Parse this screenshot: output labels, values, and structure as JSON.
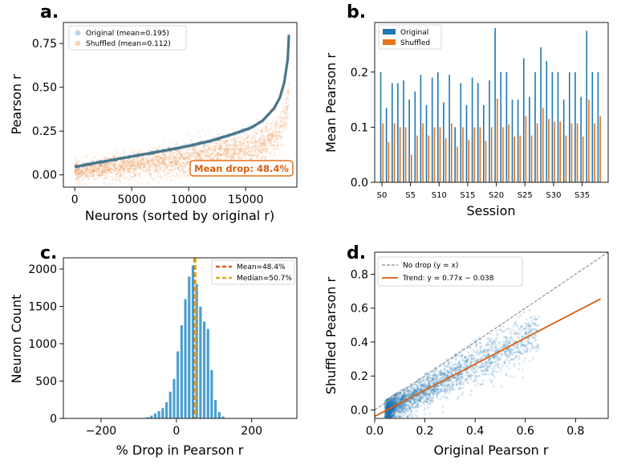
{
  "colors": {
    "original": "#1f77b4",
    "shuffled": "#e6731a",
    "scatter_line": "#4a7689",
    "median": "#e6a817",
    "identity": "#888888",
    "trend": "#d95f0e"
  },
  "chart_data": [
    {
      "panel": "a.",
      "type": "scatter",
      "xlabel": "Neurons (sorted by original r)",
      "ylabel": "Pearson r",
      "xlim": [
        -1000,
        19500
      ],
      "ylim": [
        -0.07,
        0.87
      ],
      "xticks": [
        0,
        5000,
        10000,
        15000
      ],
      "yticks": [
        0.0,
        0.25,
        0.5,
        0.75
      ],
      "ytick_labels": [
        "0.00",
        "0.25",
        "0.50",
        "0.75"
      ],
      "n_neurons": 18800,
      "series": [
        {
          "name": "Original (mean=0.195)",
          "curve_x": [
            0,
            2000,
            5000,
            8000,
            10000,
            12000,
            14000,
            15500,
            16500,
            17500,
            18000,
            18400,
            18700,
            18800
          ],
          "curve_y": [
            0.045,
            0.07,
            0.105,
            0.14,
            0.165,
            0.195,
            0.235,
            0.27,
            0.31,
            0.38,
            0.44,
            0.53,
            0.66,
            0.8
          ]
        },
        {
          "name": "Shuffled (mean=0.112)",
          "spread_center_y": [
            0.02,
            0.035,
            0.055,
            0.075,
            0.09,
            0.11,
            0.13,
            0.15,
            0.175,
            0.22,
            0.26,
            0.32,
            0.4,
            0.5
          ]
        }
      ],
      "annotation": "Mean drop: 48.4%",
      "legend_position": "top-left"
    },
    {
      "panel": "b.",
      "type": "bar",
      "xlabel": "Session",
      "ylabel": "Mean Pearson r",
      "ylim": [
        0,
        0.29
      ],
      "yticks": [
        0.0,
        0.1,
        0.2
      ],
      "ytick_labels": [
        "0.0",
        "0.1",
        "0.2"
      ],
      "categories": [
        "S0",
        "S1",
        "S2",
        "S3",
        "S4",
        "S5",
        "S6",
        "S7",
        "S8",
        "S9",
        "S10",
        "S11",
        "S12",
        "S13",
        "S14",
        "S15",
        "S16",
        "S17",
        "S18",
        "S19",
        "S20",
        "S21",
        "S22",
        "S23",
        "S24",
        "S25",
        "S26",
        "S27",
        "S28",
        "S29",
        "S30",
        "S31",
        "S32",
        "S33",
        "S34",
        "S35",
        "S36",
        "S37",
        "S38"
      ],
      "tick_labels": [
        "S0",
        "S5",
        "S10",
        "S15",
        "S20",
        "S25",
        "S30",
        "S35"
      ],
      "tick_indices": [
        0,
        5,
        10,
        15,
        20,
        25,
        30,
        35
      ],
      "series": [
        {
          "name": "Original",
          "values": [
            0.2,
            0.135,
            0.18,
            0.18,
            0.185,
            0.15,
            0.165,
            0.195,
            0.14,
            0.19,
            0.2,
            0.145,
            0.195,
            0.1,
            0.18,
            0.14,
            0.19,
            0.18,
            0.14,
            0.185,
            0.28,
            0.2,
            0.2,
            0.15,
            0.15,
            0.225,
            0.155,
            0.2,
            0.245,
            0.22,
            0.2,
            0.2,
            0.15,
            0.2,
            0.2,
            0.155,
            0.275,
            0.2,
            0.2
          ]
        },
        {
          "name": "Shuffled",
          "values": [
            0.107,
            0.073,
            0.107,
            0.1,
            0.1,
            0.05,
            0.085,
            0.107,
            0.085,
            0.1,
            0.1,
            0.08,
            0.107,
            0.065,
            0.1,
            0.077,
            0.1,
            0.1,
            0.075,
            0.1,
            0.152,
            0.1,
            0.105,
            0.083,
            0.085,
            0.12,
            0.085,
            0.107,
            0.135,
            0.115,
            0.11,
            0.11,
            0.085,
            0.107,
            0.107,
            0.083,
            0.15,
            0.107,
            0.12
          ]
        }
      ],
      "legend_position": "top-left"
    },
    {
      "panel": "c.",
      "type": "bar",
      "xlabel": "% Drop in Pearson r",
      "ylabel": "Neuron Count",
      "xlim": [
        -300,
        320
      ],
      "ylim": [
        0,
        2150
      ],
      "xticks": [
        -200,
        0,
        200
      ],
      "yticks": [
        0,
        500,
        1000,
        1500,
        2000
      ],
      "bin_width": 10,
      "bin_starts": [
        -100,
        -90,
        -80,
        -70,
        -60,
        -50,
        -40,
        -30,
        -20,
        -10,
        0,
        10,
        20,
        30,
        40,
        50,
        60,
        70,
        80,
        90,
        100,
        110,
        120
      ],
      "counts": [
        5,
        10,
        20,
        40,
        70,
        100,
        140,
        220,
        360,
        530,
        900,
        1250,
        1600,
        1900,
        2050,
        1800,
        1500,
        1300,
        1200,
        650,
        250,
        90,
        30
      ],
      "vlines": [
        {
          "name": "Mean=48.4%",
          "x": 48.4
        },
        {
          "name": "Median=50.7%",
          "x": 50.7
        }
      ],
      "legend_position": "top-right"
    },
    {
      "panel": "d.",
      "type": "scatter",
      "xlabel": "Original Pearson r",
      "ylabel": "Shuffled Pearson r",
      "xlim": [
        0.0,
        0.93
      ],
      "ylim": [
        -0.05,
        0.93
      ],
      "xticks": [
        0.0,
        0.2,
        0.4,
        0.6,
        0.8
      ],
      "yticks": [
        0.0,
        0.2,
        0.4,
        0.6,
        0.8
      ],
      "lines": [
        {
          "name": "No drop (y = x)",
          "slope": 1,
          "intercept": 0
        },
        {
          "name": "Trend: y = 0.77x − 0.038",
          "slope": 0.77,
          "intercept": -0.038
        }
      ],
      "legend_position": "top-left"
    }
  ]
}
